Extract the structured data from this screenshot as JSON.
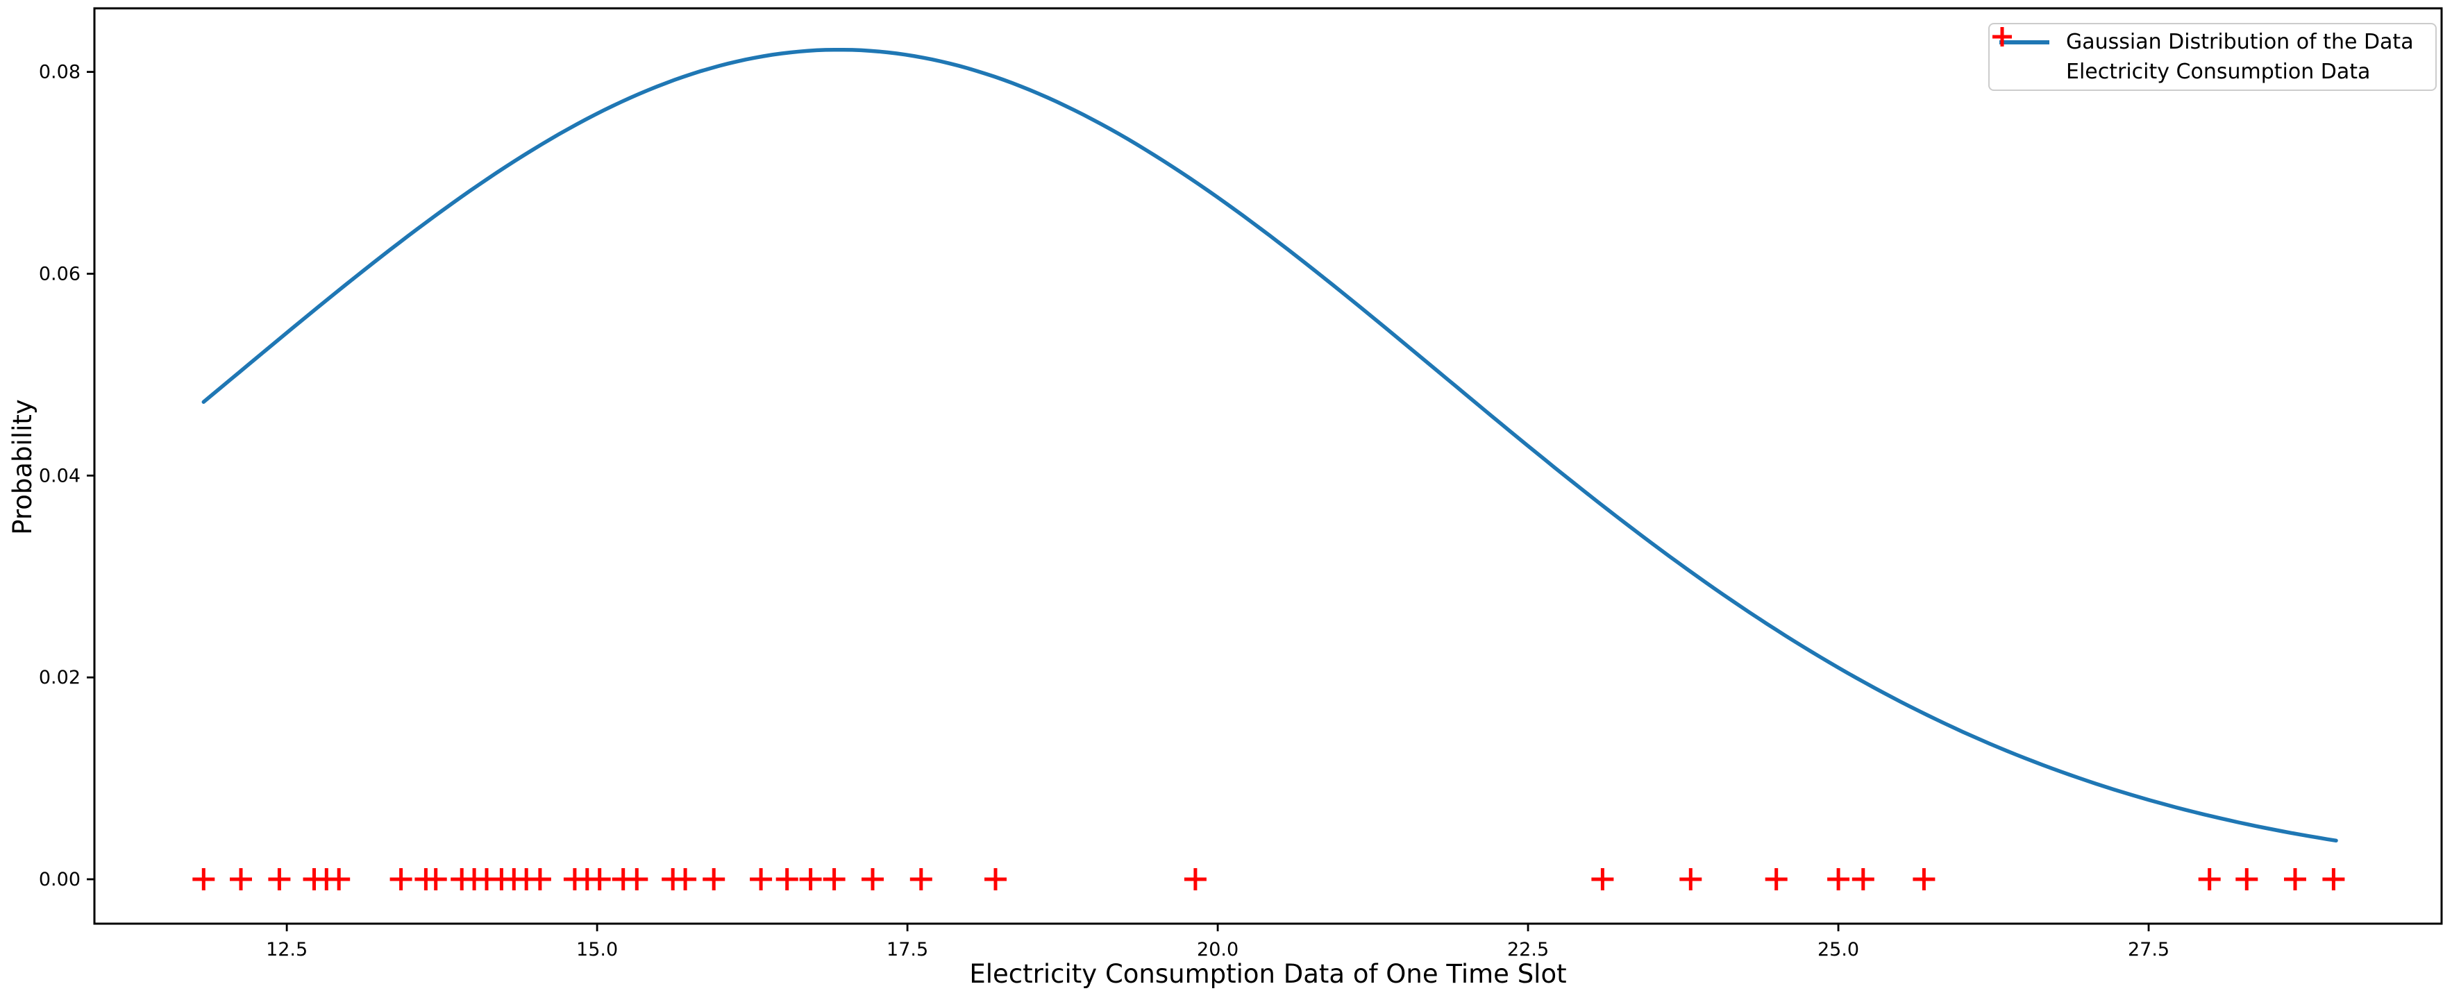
{
  "figure": {
    "background": "#ffffff",
    "text_color": "#000000",
    "spine_color": "#000000"
  },
  "chart_data": {
    "type": "line+scatter",
    "title": "",
    "xlabel": "Electricity Consumption Data of One Time Slot",
    "ylabel": "Probability",
    "xlim": [
      10.95,
      29.86
    ],
    "ylim": [
      -0.0044,
      0.0863
    ],
    "xticks": [
      12.5,
      15.0,
      17.5,
      20.0,
      22.5,
      25.0,
      27.5
    ],
    "yticks": [
      0.0,
      0.02,
      0.04,
      0.06,
      0.08
    ],
    "grid": false,
    "legend_position": "upper right",
    "series": [
      {
        "name": "Gaussian Distribution of the Data",
        "type": "line",
        "color": "#1f77b4",
        "model": {
          "distribution": "gaussian",
          "mean": 16.95,
          "sigma": 4.87,
          "peak": 0.0822,
          "x_start": 11.83,
          "x_end": 29.01
        }
      },
      {
        "name": "Electricity Consumption Data",
        "type": "scatter",
        "marker": "+",
        "color": "#ff0000",
        "y": 0,
        "x": [
          11.83,
          12.13,
          12.44,
          12.72,
          12.82,
          12.92,
          13.42,
          13.62,
          13.7,
          13.91,
          14.01,
          14.11,
          14.23,
          14.33,
          14.43,
          14.54,
          14.82,
          14.92,
          15.02,
          15.21,
          15.32,
          15.61,
          15.71,
          15.94,
          16.32,
          16.53,
          16.72,
          16.91,
          17.22,
          17.61,
          18.21,
          19.82,
          23.1,
          23.81,
          24.5,
          25.0,
          25.2,
          25.69,
          27.99,
          28.29,
          28.68,
          28.99
        ]
      }
    ]
  }
}
